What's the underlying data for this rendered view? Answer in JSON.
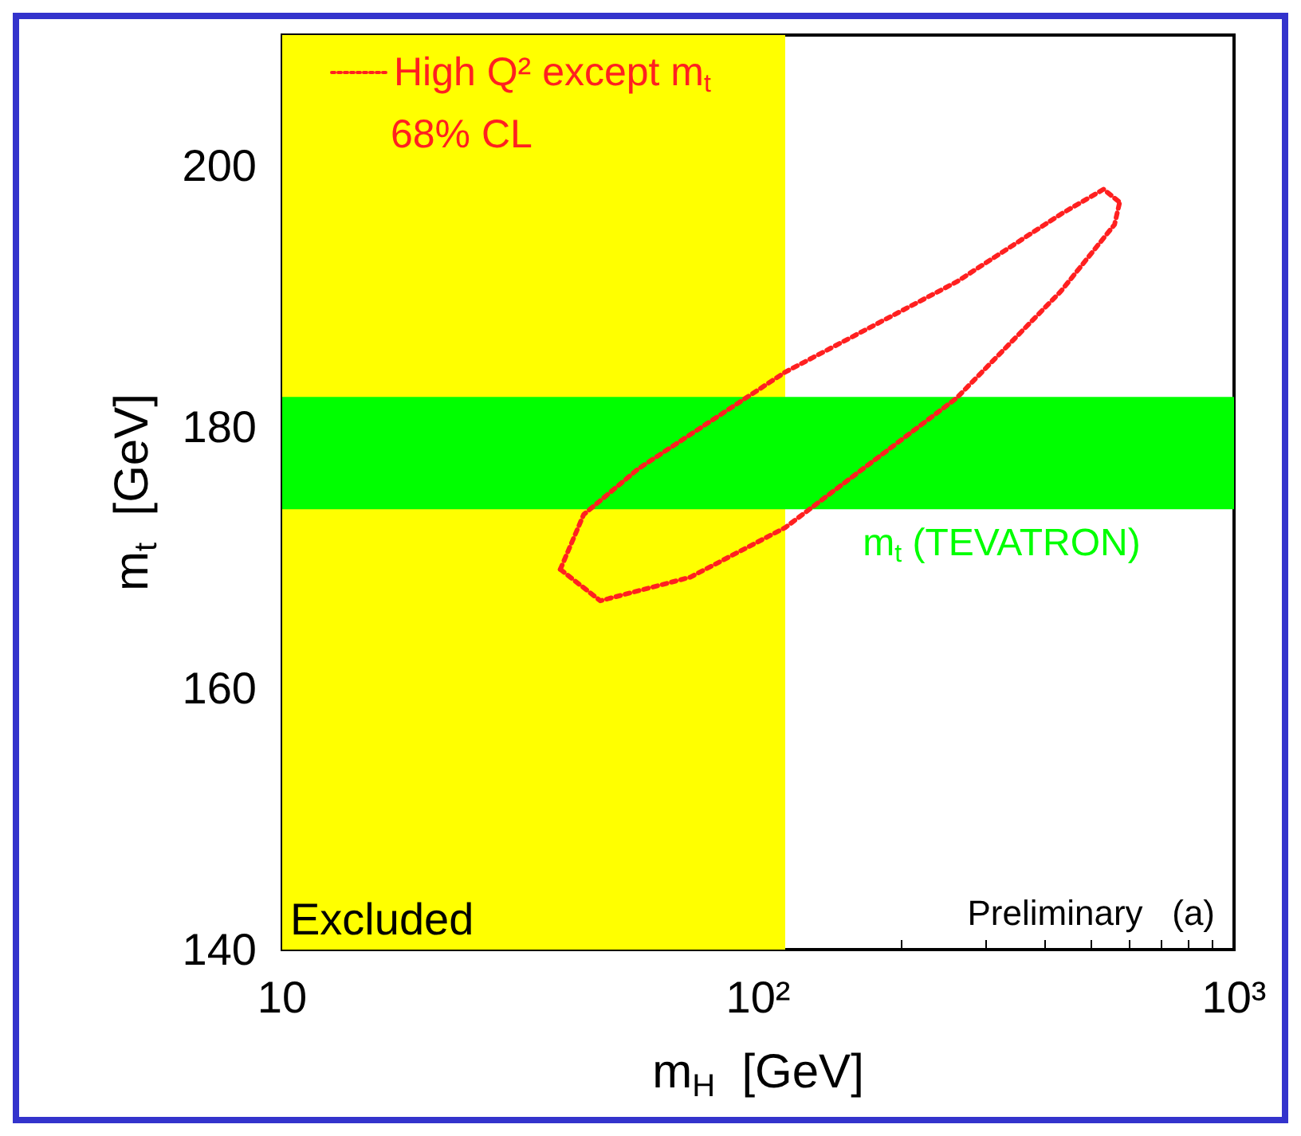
{
  "chart_data": {
    "type": "line",
    "xlabel": "m$_{H}$  [GeV]",
    "ylabel": "m$_{t}$  [GeV]",
    "series": [
      {
        "name": "High Q² except m$_{t}$",
        "color": "#ff2020",
        "x": [
          38.4,
          46.6,
          72,
          114,
          261,
          433,
          561,
          575
        ],
        "values": [
          169.1,
          166.7,
          168.5,
          172.3,
          182.2,
          190.4,
          195.5,
          197.2
        ]
      },
      {
        "color": "#ff2020",
        "x": [
          38.4,
          43,
          56,
          114,
          261,
          433,
          532,
          575
        ],
        "values": [
          169.1,
          173.3,
          176.8,
          184.2,
          191.1,
          196.3,
          198.2,
          197.2
        ]
      }
    ],
    "line_style": "dotted",
    "marker": "none",
    "log": "x",
    "grid": false,
    "legend": "top left",
    "xlim": [
      10,
      1000
    ],
    "xticks": [
      10,
      {
        "value": 100,
        "label": "10²"
      },
      {
        "value": 1000,
        "label": "10³"
      }
    ],
    "ylim": [
      140,
      210
    ],
    "yticks": [
      140,
      160,
      180,
      200
    ],
    "bands": [
      {
        "axis": "x",
        "from": 10,
        "to": 114,
        "label": "Excluded",
        "color": "#ffff00"
      },
      {
        "axis": "y",
        "from": 173.7,
        "to": 182.3,
        "label": "m$_{t}$ (TEVATRON)",
        "color": "#00ff00"
      }
    ],
    "annotations": [
      "68% CL",
      "Preliminary   (a)"
    ]
  }
}
